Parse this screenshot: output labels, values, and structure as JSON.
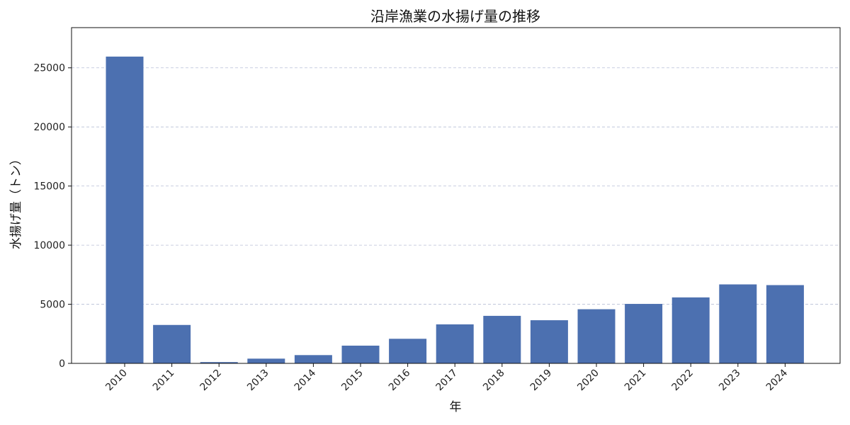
{
  "chart_data": {
    "type": "bar",
    "title": "沿岸漁業の水揚げ量の推移",
    "xlabel": "年",
    "ylabel": "水揚げ量（トン）",
    "categories": [
      "2010",
      "2011",
      "2012",
      "2013",
      "2014",
      "2015",
      "2016",
      "2017",
      "2018",
      "2019",
      "2020",
      "2021",
      "2022",
      "2023",
      "2024"
    ],
    "series": [
      {
        "name": "水揚げ量",
        "values": [
          25950,
          3250,
          110,
          400,
          700,
          1500,
          2080,
          3300,
          4020,
          3650,
          4580,
          5030,
          5580,
          6680,
          6620
        ]
      }
    ],
    "ylim": [
      0,
      28400
    ],
    "yticks": [
      0,
      5000,
      10000,
      15000,
      20000,
      25000
    ],
    "grid": true,
    "bar_color": "#4c70b0",
    "grid_color": "#b8bfd6"
  }
}
